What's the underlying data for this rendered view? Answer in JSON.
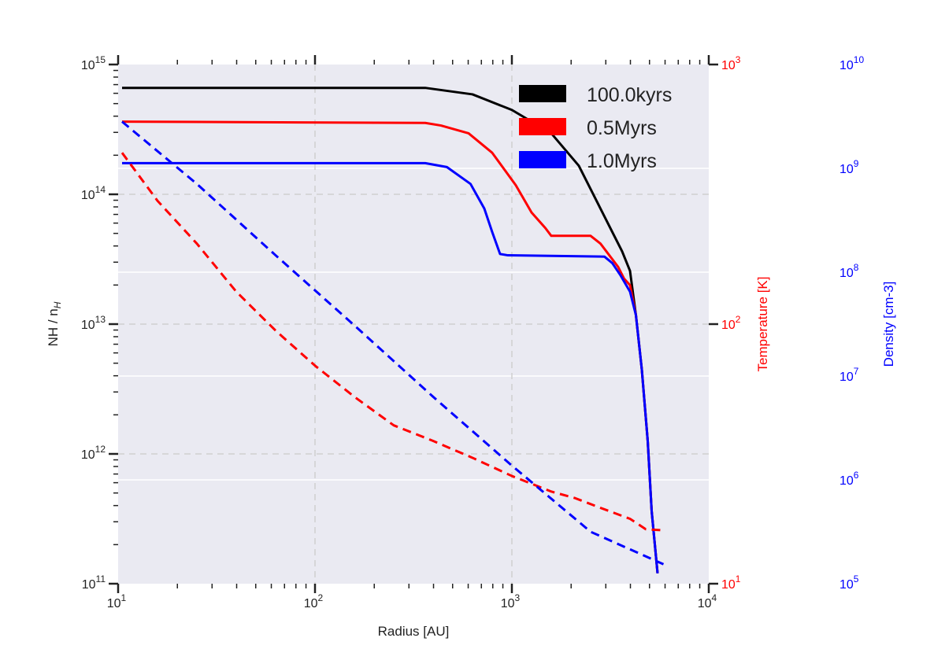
{
  "chart_data": {
    "type": "line",
    "xlabel": "Radius [AU]",
    "ylabel_main": "NH / n",
    "ylabel_sub": "H",
    "ylabel_temperature": "Temperature [K]",
    "ylabel_density": "Density [cm-3]",
    "x_scale": "log",
    "xlim_log10": [
      1,
      4
    ],
    "ylim_left_log10": [
      11,
      15
    ],
    "ylim_temperature_log10": [
      1,
      3
    ],
    "ylim_density_log10": [
      5,
      10
    ],
    "x_ticks": [
      {
        "base": "10",
        "exp": "1"
      },
      {
        "base": "10",
        "exp": "2"
      },
      {
        "base": "10",
        "exp": "3"
      },
      {
        "base": "10",
        "exp": "4"
      }
    ],
    "y_left_ticks": [
      {
        "base": "10",
        "exp": "11"
      },
      {
        "base": "10",
        "exp": "12"
      },
      {
        "base": "10",
        "exp": "13"
      },
      {
        "base": "10",
        "exp": "14"
      },
      {
        "base": "10",
        "exp": "15"
      }
    ],
    "y_temperature_ticks": [
      {
        "base": "10",
        "exp": "1"
      },
      {
        "base": "10",
        "exp": "2"
      },
      {
        "base": "10",
        "exp": "3"
      }
    ],
    "y_density_ticks": [
      {
        "base": "10",
        "exp": "5"
      },
      {
        "base": "10",
        "exp": "6"
      },
      {
        "base": "10",
        "exp": "7"
      },
      {
        "base": "10",
        "exp": "8"
      },
      {
        "base": "10",
        "exp": "9"
      },
      {
        "base": "10",
        "exp": "10"
      }
    ],
    "grid": true,
    "legend_position": "top-right",
    "colors": {
      "temperature_axis": "#ff0000",
      "density_axis": "#0000ff",
      "background": "#eaeaf2"
    },
    "series": [
      {
        "name": "100.0kyrs",
        "color": "#000000",
        "style": "solid",
        "x_log10": [
          1.02,
          1.8,
          2.56,
          2.8,
          3.0,
          3.2,
          3.34,
          3.44,
          3.52,
          3.56,
          3.6,
          3.63,
          3.66,
          3.69,
          3.71,
          3.74
        ],
        "y_log10": [
          14.82,
          14.82,
          14.82,
          14.77,
          14.65,
          14.47,
          14.22,
          13.92,
          13.68,
          13.56,
          13.41,
          13.07,
          12.65,
          12.1,
          11.56,
          11.08
        ]
      },
      {
        "name": "0.5Myrs",
        "color": "#ff0000",
        "style": "solid",
        "x_log10": [
          1.02,
          2.56,
          2.64,
          2.78,
          2.9,
          3.02,
          3.1,
          3.17,
          3.2,
          3.4,
          3.45,
          3.54,
          3.57,
          3.6,
          3.63,
          3.66,
          3.69,
          3.71,
          3.74
        ],
        "y_log10": [
          14.56,
          14.55,
          14.53,
          14.47,
          14.32,
          14.07,
          13.86,
          13.74,
          13.68,
          13.68,
          13.62,
          13.44,
          13.35,
          13.3,
          13.07,
          12.65,
          12.1,
          11.56,
          11.08
        ]
      },
      {
        "name": "1.0Myrs",
        "color": "#0000ff",
        "style": "solid",
        "x_log10": [
          1.02,
          2.56,
          2.67,
          2.79,
          2.86,
          2.9,
          2.94,
          2.98,
          3.47,
          3.51,
          3.55,
          3.6,
          3.63,
          3.66,
          3.69,
          3.71,
          3.74
        ],
        "y_log10": [
          14.24,
          14.24,
          14.21,
          14.08,
          13.89,
          13.71,
          13.54,
          13.53,
          13.52,
          13.47,
          13.38,
          13.25,
          13.07,
          12.65,
          12.1,
          11.56,
          11.08
        ]
      },
      {
        "name": "0.5Myrs dashed",
        "color": "#ff0000",
        "style": "dashed",
        "x_log10": [
          1.02,
          1.2,
          1.4,
          1.6,
          1.8,
          2.0,
          2.2,
          2.4,
          2.6,
          2.8,
          3.0,
          3.2,
          3.32,
          3.44,
          3.6,
          3.68,
          3.78
        ],
        "y_log10": [
          14.32,
          13.95,
          13.62,
          13.25,
          12.95,
          12.68,
          12.44,
          12.22,
          12.1,
          11.97,
          11.83,
          11.71,
          11.66,
          11.59,
          11.5,
          11.42,
          11.41
        ]
      },
      {
        "name": "1.0Myrs dashed",
        "color": "#0000ff",
        "style": "dashed",
        "x_log10": [
          1.02,
          1.4,
          1.8,
          2.2,
          2.6,
          3.0,
          3.4,
          3.77
        ],
        "y_log10": [
          14.56,
          14.08,
          13.53,
          12.99,
          12.44,
          11.91,
          11.4,
          11.15
        ]
      }
    ],
    "legend": [
      "100.0kyrs",
      "0.5Myrs",
      "1.0Myrs"
    ]
  }
}
